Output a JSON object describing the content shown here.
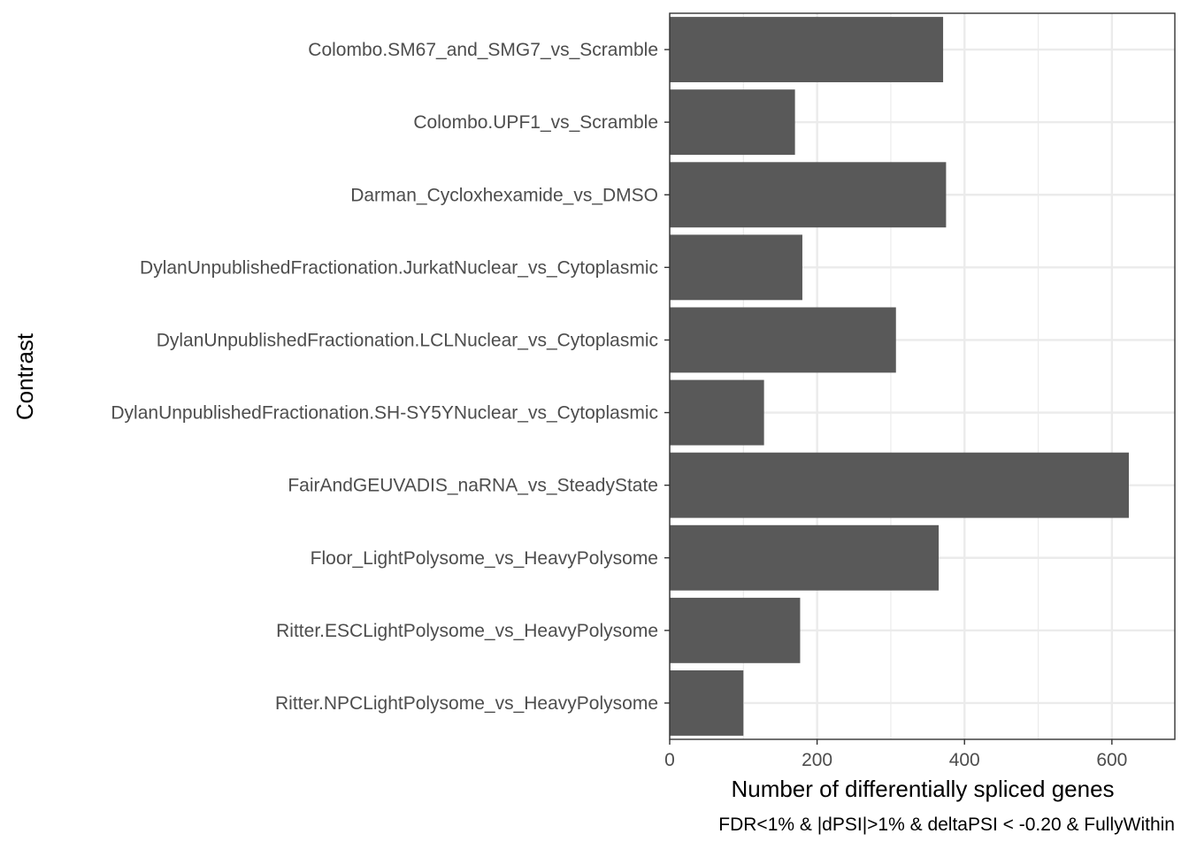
{
  "chart_data": {
    "type": "bar",
    "orientation": "horizontal",
    "categories": [
      "Colombo.SM67_and_SMG7_vs_Scramble",
      "Colombo.UPF1_vs_Scramble",
      "Darman_Cycloxhexamide_vs_DMSO",
      "DylanUnpublishedFractionation.JurkatNuclear_vs_Cytoplasmic",
      "DylanUnpublishedFractionation.LCLNuclear_vs_Cytoplasmic",
      "DylanUnpublishedFractionation.SH-SY5YNuclear_vs_Cytoplasmic",
      "FairAndGEUVADIS_naRNA_vs_SteadyState",
      "Floor_LightPolysome_vs_HeavyPolysome",
      "Ritter.ESCLightPolysome_vs_HeavyPolysome",
      "Ritter.NPCLightPolysome_vs_HeavyPolysome"
    ],
    "values": [
      371,
      170,
      375,
      180,
      307,
      128,
      623,
      365,
      177,
      100
    ],
    "xlabel": "Number of differentially spliced genes",
    "ylabel": "Contrast",
    "caption": "FDR<1% & |dPSI|>1% & deltaPSI < -0.20 & FullyWithin",
    "xlim": [
      0,
      683
    ],
    "xticks": [
      0,
      200,
      400,
      600
    ],
    "xtick_labels": [
      "0",
      "200",
      "400",
      "600"
    ],
    "grid": true,
    "bar_color": "#595959",
    "grid_color": "#ebebeb",
    "panel_border_color": "#333333"
  }
}
